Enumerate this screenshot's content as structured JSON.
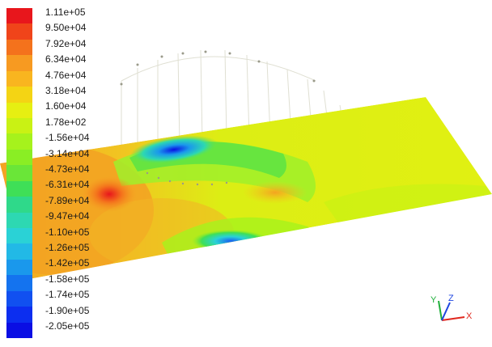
{
  "legend": {
    "labels": [
      "1.11e+05",
      "9.50e+04",
      "7.92e+04",
      "6.34e+04",
      "4.76e+04",
      "3.18e+04",
      "1.60e+04",
      "1.78e+02",
      "-1.56e+04",
      "-3.14e+04",
      "-4.73e+04",
      "-6.31e+04",
      "-7.89e+04",
      "-9.47e+04",
      "-1.10e+05",
      "-1.26e+05",
      "-1.42e+05",
      "-1.58e+05",
      "-1.74e+05",
      "-1.90e+05",
      "-2.05e+05"
    ],
    "colors": [
      "#e8161c",
      "#f0441a",
      "#f4721c",
      "#f79a21",
      "#f9b51f",
      "#f4d414",
      "#e6ef12",
      "#c9f214",
      "#a6f21c",
      "#8aee24",
      "#6ae638",
      "#3fdf57",
      "#2fd98a",
      "#2dd8b2",
      "#2ad2d6",
      "#22b9e6",
      "#1a98ec",
      "#1473ef",
      "#1150f0",
      "#0c2ef0",
      "#0a0ee4"
    ]
  },
  "axes": {
    "x_label": "X",
    "y_label": "Y",
    "z_label": "Z",
    "x_color": "#e0281e",
    "y_color": "#1fae3a",
    "z_color": "#1e46e0"
  }
}
